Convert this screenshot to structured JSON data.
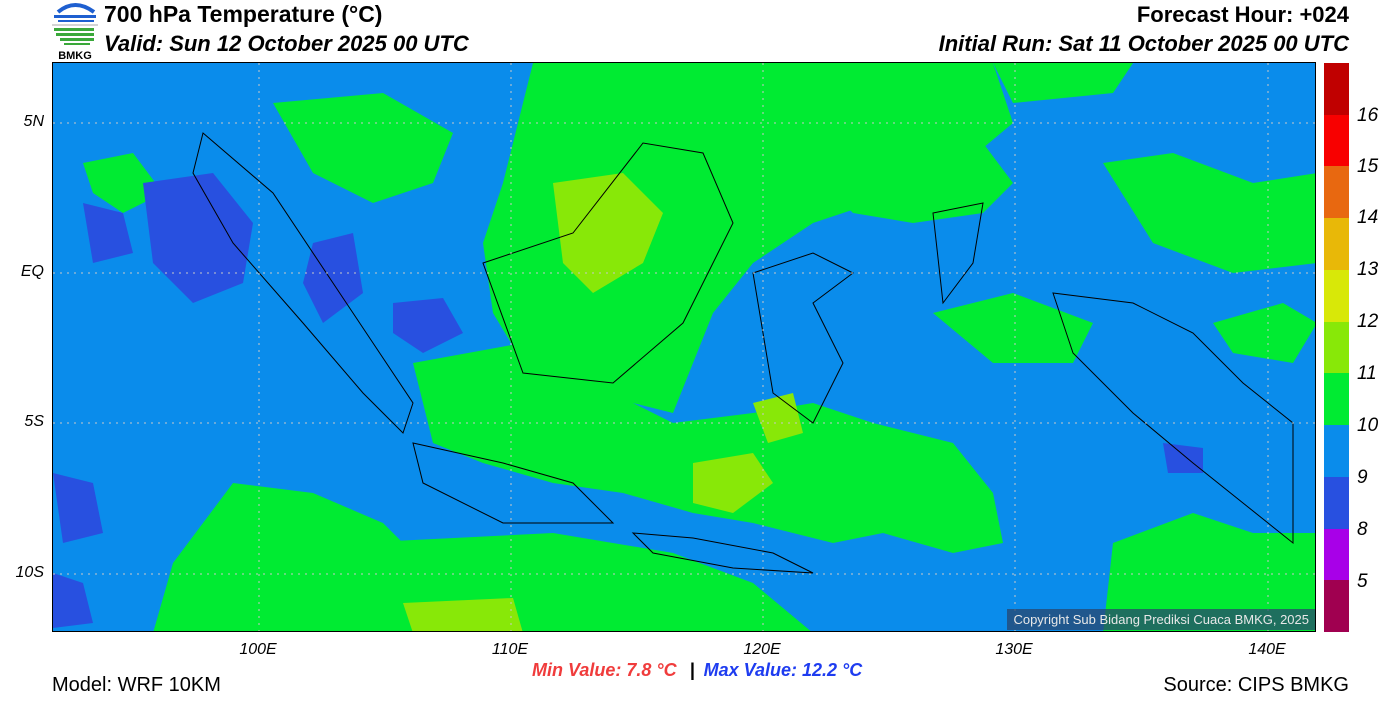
{
  "header": {
    "title": "700 hPa Temperature (°C)",
    "valid": "Valid: Sun 12 October 2025 00 UTC",
    "forecast_hour": "Forecast Hour: +024",
    "initial_run": "Initial Run: Sat 11 October 2025 00 UTC",
    "logo_text": "BMKG"
  },
  "map": {
    "lat_labels": [
      "5N",
      "EQ",
      "5S",
      "10S"
    ],
    "lon_labels": [
      "100E",
      "110E",
      "120E",
      "130E",
      "140E"
    ],
    "copyright": "Copyright Sub Bidang Prediksi Cuaca BMKG, 2025"
  },
  "colorbar": {
    "labels": [
      "16",
      "15",
      "14",
      "13",
      "12",
      "11",
      "10",
      "9",
      "8",
      "5"
    ],
    "colors": [
      "#C00000",
      "#F80000",
      "#E86810",
      "#E8B808",
      "#D8E808",
      "#88E808",
      "#00EB32",
      "#0A8CEB",
      "#2850E0",
      "#A800E8",
      "#A00050"
    ]
  },
  "footer": {
    "min_value": "Min Value: 7.8 °C",
    "separator": "|",
    "max_value": "Max Value: 12.2 °C",
    "model": "Model: WRF 10KM",
    "source": "Source: CIPS BMKG"
  }
}
